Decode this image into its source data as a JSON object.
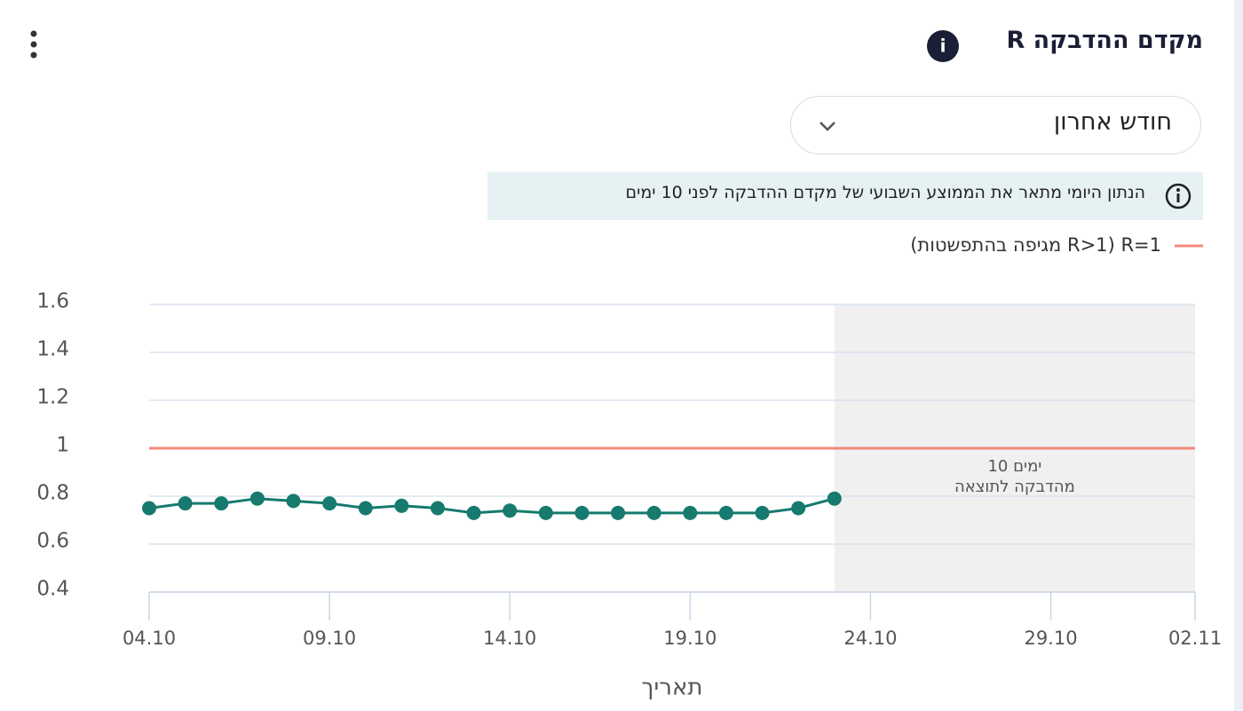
{
  "header": {
    "title": "מקדם ההדבקה R",
    "period_select": "חודש אחרון",
    "info_note": "הנתון היומי מתאר את הממוצע השבועי של מקדם ההדבקה לפני 10 ימים"
  },
  "chart_data": {
    "type": "line",
    "x": [
      "04.10",
      "05.10",
      "06.10",
      "07.10",
      "08.10",
      "09.10",
      "10.10",
      "11.10",
      "12.10",
      "13.10",
      "14.10",
      "15.10",
      "16.10",
      "17.10",
      "18.10",
      "19.10",
      "20.10",
      "21.10",
      "22.10",
      "23.10"
    ],
    "values": [
      0.75,
      0.77,
      0.77,
      0.79,
      0.78,
      0.77,
      0.75,
      0.76,
      0.75,
      0.73,
      0.74,
      0.73,
      0.73,
      0.73,
      0.73,
      0.73,
      0.73,
      0.73,
      0.75,
      0.79
    ],
    "color": "#167a6e",
    "xlim": [
      "04.10",
      "02.11"
    ],
    "xticks": [
      "04.10",
      "09.10",
      "14.10",
      "19.10",
      "24.10",
      "29.10",
      "02.11"
    ],
    "ylim": [
      0.4,
      1.6
    ],
    "yticks": [
      0.4,
      0.6,
      0.8,
      1,
      1.2,
      1.4,
      1.6
    ],
    "grid": true,
    "xlabel": "תאריך",
    "reference_line": {
      "value": 1,
      "label": "R=1 (R>1 מגיפה בהתפשטות)",
      "color": "#f4897b"
    },
    "shaded_annotation": [
      "10 ימים",
      "מהדבקה לתוצאה"
    ],
    "shade_color": "#f0f0f0"
  }
}
